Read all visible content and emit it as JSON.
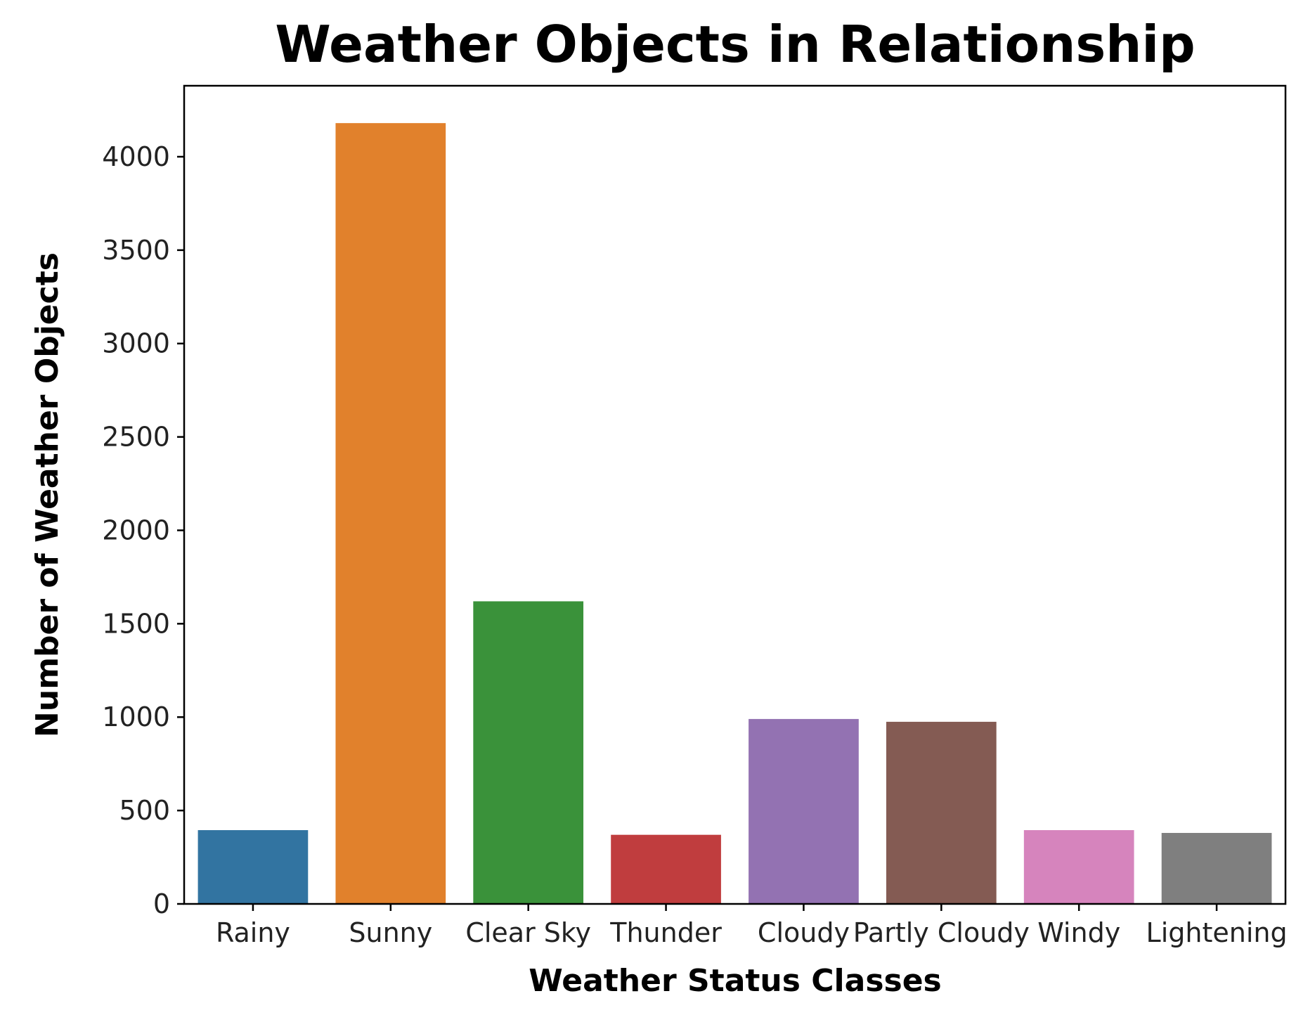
{
  "chart_data": {
    "type": "bar",
    "title": "Weather Objects in Relationship",
    "xlabel": "Weather Status Classes",
    "ylabel": "Number of Weather Objects",
    "categories": [
      "Rainy",
      "Sunny",
      "Clear Sky",
      "Thunder",
      "Cloudy",
      "Partly Cloudy",
      "Windy",
      "Lightening"
    ],
    "values": [
      395,
      4180,
      1620,
      370,
      990,
      975,
      395,
      380
    ],
    "colors": [
      "#3274a1",
      "#e1812c",
      "#3a923a",
      "#c03d3e",
      "#9372b2",
      "#845b53",
      "#d684bd",
      "#7f7f7f"
    ],
    "ylim": [
      0,
      4380
    ],
    "yticks": [
      0,
      500,
      1000,
      1500,
      2000,
      2500,
      3000,
      3500,
      4000
    ],
    "grid": false
  }
}
